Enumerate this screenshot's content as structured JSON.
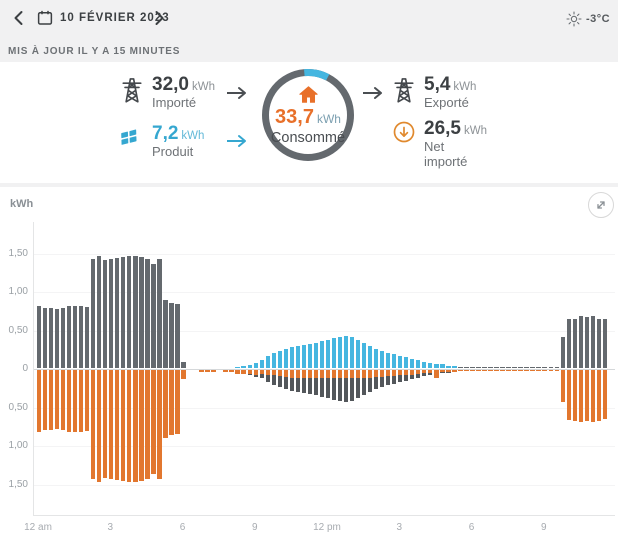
{
  "header": {
    "date": "10 FÉVRIER 2023",
    "prev_icon": "chevron-left",
    "next_icon": "chevron-right",
    "calendar_icon": "calendar",
    "weather": {
      "icon": "sun",
      "temperature": "-3°C"
    },
    "updated": "MIS À JOUR IL Y A 15 MINUTES"
  },
  "summary": {
    "imported": {
      "value": "32,0",
      "unit": "kWh",
      "label": "Importé",
      "icon": "power-tower"
    },
    "produced": {
      "value": "7,2",
      "unit": "kWh",
      "label": "Produit",
      "icon": "solar-panel"
    },
    "consumed": {
      "value": "33,7",
      "unit": "kWh",
      "label": "Consommé",
      "icon": "house"
    },
    "exported": {
      "value": "5,4",
      "unit": "kWh",
      "label": "Exporté",
      "icon": "power-tower"
    },
    "net_imported": {
      "value": "26,5",
      "unit": "kWh",
      "label_line1": "Net",
      "label_line2": "importé",
      "icon": "arrow-down-circle"
    }
  },
  "colors": {
    "import_bar": "#64696e",
    "production_bar": "#45b6e0",
    "consumption_bar": "#e2772f",
    "export_bar": "#53575b",
    "ring_gray": "#64696e",
    "ring_blue": "#45b6e0",
    "accent_orange": "#e8702a",
    "accent_blue": "#35a7d0"
  },
  "chart_data": {
    "type": "bar",
    "title": "",
    "unit_label": "kWh",
    "interval_minutes": 15,
    "start_hour": 0,
    "ylim": [
      -1.9,
      1.9
    ],
    "grid": "horizontal-faint",
    "y_ticks": [
      {
        "label": "1,50",
        "value": 1.5
      },
      {
        "label": "1,00",
        "value": 1.0
      },
      {
        "label": "0,50",
        "value": 0.5
      },
      {
        "label": "0",
        "value": 0.0
      },
      {
        "label": "0,50",
        "value": -0.5
      },
      {
        "label": "1,00",
        "value": -1.0
      },
      {
        "label": "1,50",
        "value": -1.5
      }
    ],
    "x_ticks": [
      {
        "label": "12 am",
        "hour": 0
      },
      {
        "label": "3",
        "hour": 3
      },
      {
        "label": "6",
        "hour": 6
      },
      {
        "label": "9",
        "hour": 9
      },
      {
        "label": "12 pm",
        "hour": 12
      },
      {
        "label": "3",
        "hour": 15
      },
      {
        "label": "6",
        "hour": 18
      },
      {
        "label": "9",
        "hour": 21
      }
    ],
    "series": [
      {
        "name": "imported",
        "direction": "up",
        "color": "#64696e",
        "values": [
          0.8,
          0.78,
          0.78,
          0.77,
          0.78,
          0.8,
          0.8,
          0.8,
          0.79,
          1.42,
          1.45,
          1.4,
          1.42,
          1.43,
          1.44,
          1.45,
          1.45,
          1.44,
          1.42,
          1.35,
          1.41,
          0.88,
          0.84,
          0.83,
          0.08,
          0,
          0,
          0,
          0,
          0,
          0,
          0,
          0,
          0,
          0,
          0,
          0,
          0,
          0,
          0,
          0,
          0,
          0,
          0,
          0,
          0,
          0,
          0,
          0,
          0,
          0,
          0,
          0,
          0,
          0,
          0,
          0,
          0,
          0,
          0,
          0,
          0,
          0,
          0,
          0,
          0,
          0,
          0,
          0,
          0,
          0.01,
          0.01,
          0.01,
          0.01,
          0.01,
          0.01,
          0.01,
          0.01,
          0.01,
          0.01,
          0.01,
          0.01,
          0.01,
          0.01,
          0.01,
          0.01,
          0.01,
          0.4,
          0.64,
          0.64,
          0.67,
          0.66,
          0.67,
          0.64,
          0.64,
          0
        ]
      },
      {
        "name": "produced",
        "direction": "up",
        "color": "#45b6e0",
        "values": [
          0,
          0,
          0,
          0,
          0,
          0,
          0,
          0,
          0,
          0,
          0,
          0,
          0,
          0,
          0,
          0,
          0,
          0,
          0,
          0,
          0,
          0,
          0,
          0,
          0,
          0,
          0,
          0,
          0,
          0,
          0,
          0,
          0,
          0.01,
          0.02,
          0.04,
          0.07,
          0.11,
          0.15,
          0.19,
          0.22,
          0.25,
          0.27,
          0.28,
          0.3,
          0.31,
          0.33,
          0.35,
          0.37,
          0.39,
          0.4,
          0.41,
          0.4,
          0.37,
          0.33,
          0.28,
          0.25,
          0.22,
          0.2,
          0.18,
          0.16,
          0.14,
          0.12,
          0.1,
          0.08,
          0.07,
          0.05,
          0.05,
          0.03,
          0.02,
          0,
          0,
          0,
          0,
          0,
          0,
          0,
          0,
          0,
          0,
          0,
          0,
          0,
          0,
          0,
          0,
          0,
          0,
          0,
          0,
          0,
          0,
          0,
          0,
          0,
          0
        ]
      },
      {
        "name": "consumed",
        "direction": "down",
        "color": "#e2772f",
        "values": [
          0.8,
          0.78,
          0.78,
          0.77,
          0.78,
          0.8,
          0.8,
          0.8,
          0.79,
          1.42,
          1.45,
          1.4,
          1.42,
          1.43,
          1.44,
          1.45,
          1.45,
          1.44,
          1.42,
          1.35,
          1.41,
          0.88,
          0.84,
          0.83,
          0.12,
          0,
          0,
          0.03,
          0.03,
          0.02,
          0,
          0.03,
          0.03,
          0.05,
          0.05,
          0.05,
          0.06,
          0.05,
          0.06,
          0.06,
          0.08,
          0.09,
          0.1,
          0.1,
          0.11,
          0.11,
          0.11,
          0.11,
          0.11,
          0.11,
          0.11,
          0.11,
          0.11,
          0.11,
          0.1,
          0.1,
          0.09,
          0.09,
          0.08,
          0.08,
          0.07,
          0.06,
          0.06,
          0.05,
          0.04,
          0.04,
          0.1,
          0.02,
          0.02,
          0.02,
          0.01,
          0.01,
          0.01,
          0.01,
          0.01,
          0.01,
          0.01,
          0.01,
          0.01,
          0.01,
          0.01,
          0.01,
          0.01,
          0.01,
          0.01,
          0.01,
          0.01,
          0.41,
          0.65,
          0.66,
          0.67,
          0.66,
          0.68,
          0.66,
          0.64,
          0
        ]
      },
      {
        "name": "exported",
        "direction": "down",
        "color": "#53575b",
        "values": [
          0,
          0,
          0,
          0,
          0,
          0,
          0,
          0,
          0,
          0,
          0,
          0,
          0,
          0,
          0,
          0,
          0,
          0,
          0,
          0,
          0,
          0,
          0,
          0,
          0,
          0,
          0,
          0,
          0,
          0,
          0,
          0,
          0,
          0,
          0,
          0.01,
          0.03,
          0.06,
          0.09,
          0.13,
          0.14,
          0.16,
          0.17,
          0.18,
          0.19,
          0.2,
          0.22,
          0.24,
          0.26,
          0.28,
          0.29,
          0.3,
          0.29,
          0.26,
          0.22,
          0.18,
          0.16,
          0.13,
          0.12,
          0.1,
          0.08,
          0.08,
          0.06,
          0.05,
          0.04,
          0.03,
          0,
          0.01,
          0.01,
          0,
          0,
          0,
          0,
          0,
          0,
          0,
          0,
          0,
          0,
          0,
          0,
          0,
          0,
          0,
          0,
          0,
          0,
          0,
          0,
          0,
          0,
          0,
          0,
          0,
          0,
          0
        ]
      }
    ]
  },
  "ring": {
    "consumed_fraction_blue_arc_deg": 38
  }
}
